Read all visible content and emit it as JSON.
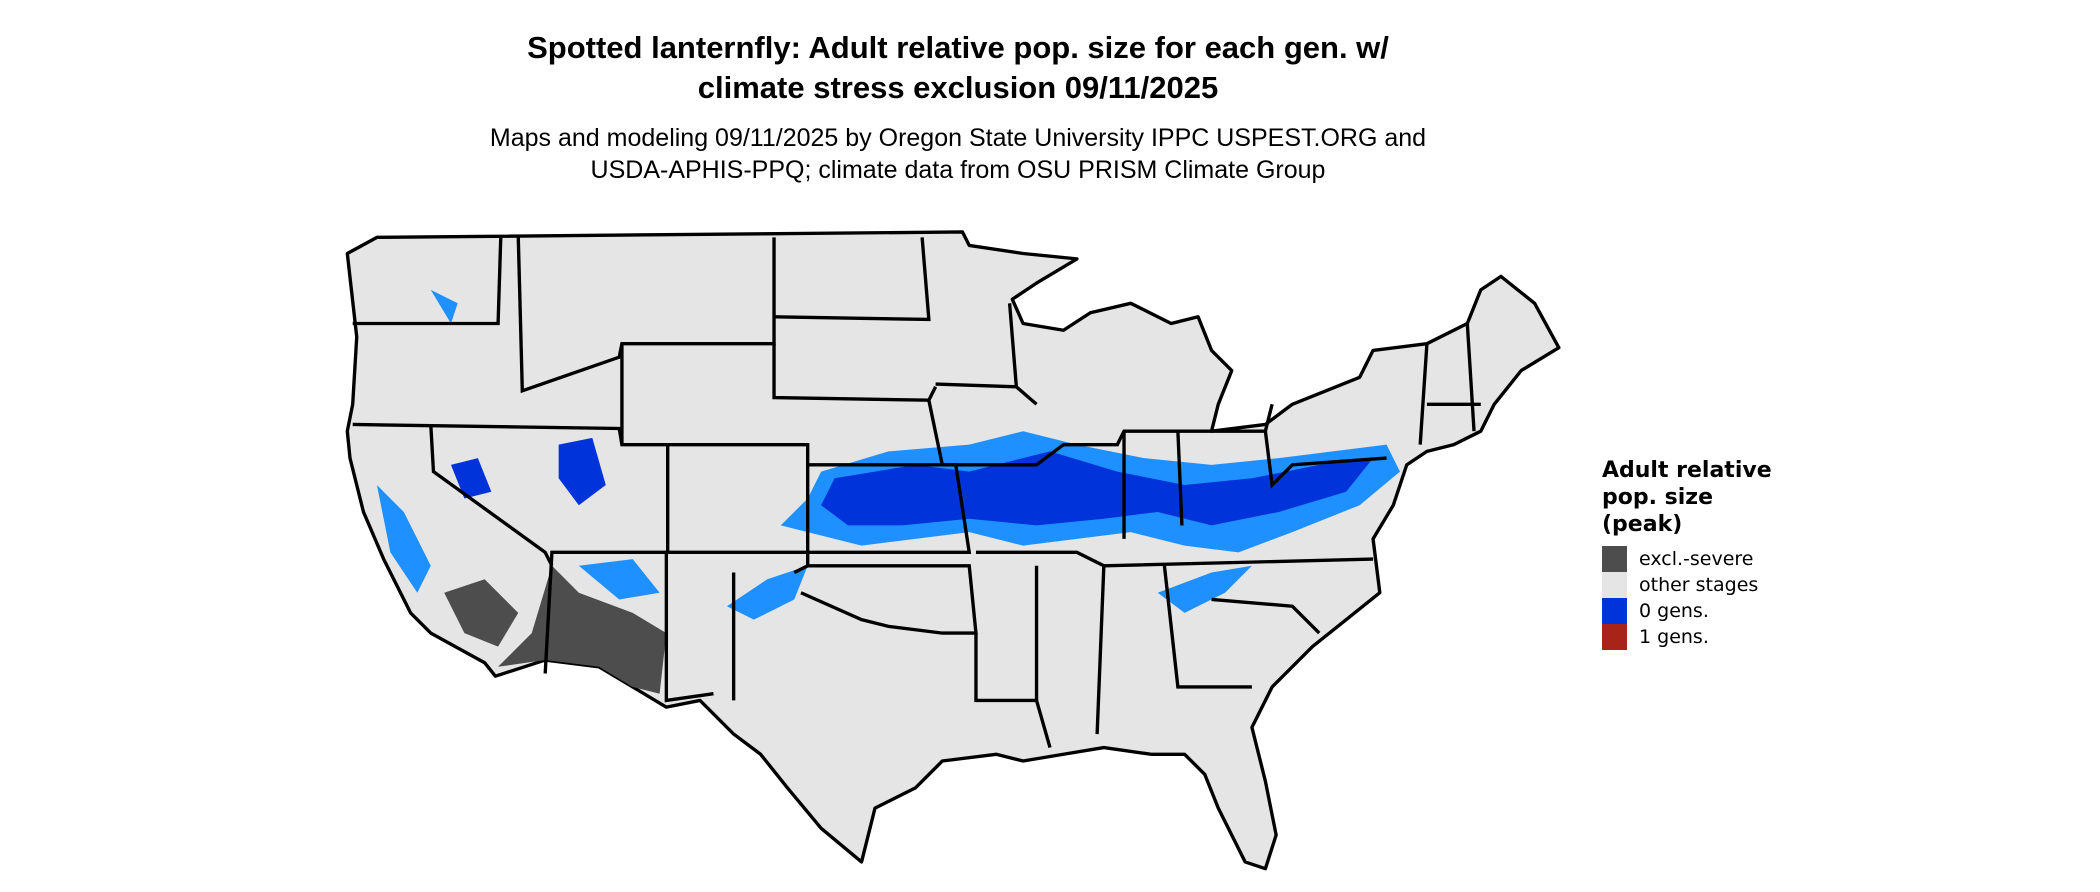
{
  "title_line1": "Spotted lanternfly: Adult relative pop. size for each gen. w/",
  "title_line2": "climate stress exclusion 09/11/2025",
  "subtitle_line1": "Maps and modeling 09/11/2025 by Oregon State University IPPC USPEST.ORG and",
  "subtitle_line2": "USDA-APHIS-PPQ; climate data from OSU PRISM Climate Group",
  "legend": {
    "title_line1": "Adult relative",
    "title_line2": "pop. size",
    "title_line3": "(peak)",
    "items": [
      {
        "label": "excl.-severe",
        "color": "#4d4d4d"
      },
      {
        "label": "other stages",
        "color": "#e5e5e5"
      },
      {
        "label": "0 gens.",
        "color": "#0033d9"
      },
      {
        "label": "1 gens.",
        "color": "#a82418"
      }
    ]
  },
  "colors": {
    "land": "#e5e5e5",
    "border": "#000000",
    "zero_gens_light": "#1e90ff",
    "excluded": "#4d4d4d"
  }
}
